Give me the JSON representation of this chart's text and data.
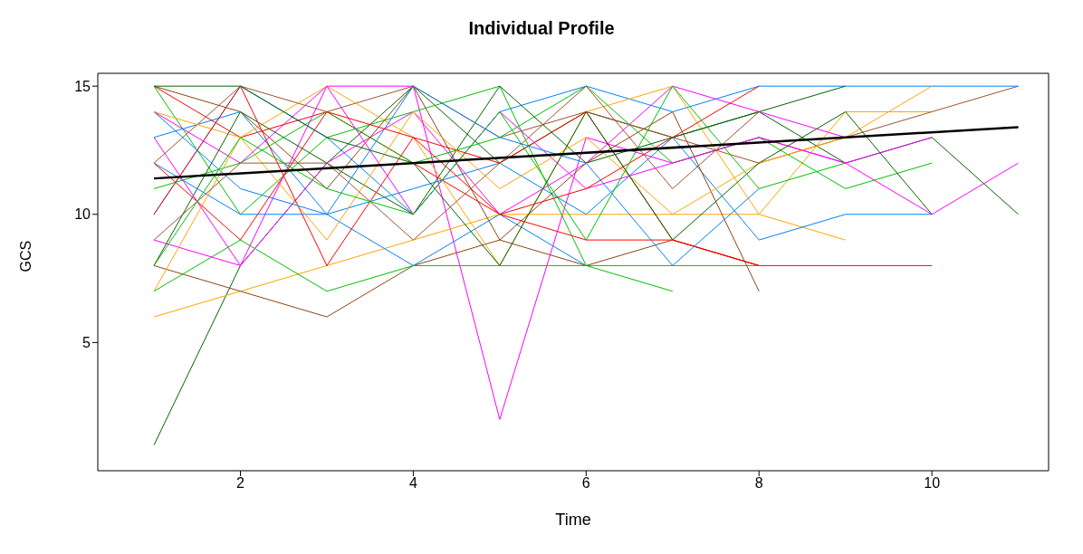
{
  "chart_data": {
    "type": "line",
    "title": "Individual Profile",
    "xlabel": "Time",
    "ylabel": "GCS",
    "x": [
      1,
      2,
      3,
      4,
      5,
      6,
      7,
      8,
      9,
      10,
      11
    ],
    "xlim": [
      0.35,
      11.35
    ],
    "xticks": [
      2,
      4,
      6,
      8,
      10
    ],
    "ylim": [
      0,
      15.5
    ],
    "yticks": [
      5,
      10,
      15
    ],
    "series": [
      {
        "color": "#006400",
        "values": [
          1,
          8,
          12,
          15,
          12,
          14,
          13,
          14,
          12,
          13,
          10
        ]
      },
      {
        "color": "#ff00ff",
        "values": [
          14,
          12,
          15,
          15,
          2,
          13,
          12,
          13,
          12,
          10,
          12
        ]
      },
      {
        "color": "#ffa500",
        "values": [
          6,
          7,
          8,
          9,
          10,
          10,
          10,
          10,
          14,
          14,
          null
        ]
      },
      {
        "color": "#8b4513",
        "values": [
          8,
          7,
          6,
          8,
          9,
          8,
          9,
          8,
          null,
          null,
          null
        ]
      },
      {
        "color": "#ff0000",
        "values": [
          15,
          13,
          14,
          12,
          10,
          9,
          9,
          8,
          8,
          8,
          null
        ]
      },
      {
        "color": "#a0522d",
        "values": [
          12,
          15,
          14,
          15,
          13,
          14,
          13,
          12,
          13,
          14,
          15
        ]
      },
      {
        "color": "#0080ff",
        "values": [
          10,
          15,
          13,
          10,
          14,
          15,
          14,
          15,
          15,
          15,
          15
        ]
      },
      {
        "color": "#00c000",
        "values": [
          7,
          9,
          7,
          8,
          8,
          8,
          8,
          8,
          null,
          null,
          null
        ]
      },
      {
        "color": "#0080ff",
        "values": [
          13,
          14,
          10,
          8,
          10,
          8,
          null,
          null,
          null,
          null,
          null
        ]
      },
      {
        "color": "#00c000",
        "values": [
          15,
          10,
          13,
          14,
          15,
          8,
          7,
          null,
          null,
          null,
          null
        ]
      },
      {
        "color": "#ff00ff",
        "values": [
          9,
          8,
          12,
          14,
          10,
          12,
          15,
          14,
          13,
          null,
          null
        ]
      },
      {
        "color": "#ffa500",
        "values": [
          14,
          13,
          15,
          13,
          8,
          14,
          15,
          10,
          9,
          null,
          null
        ]
      },
      {
        "color": "#006400",
        "values": [
          8,
          14,
          12,
          10,
          15,
          12,
          13,
          14,
          15,
          null,
          null
        ]
      },
      {
        "color": "#0080ff",
        "values": [
          12,
          10,
          10,
          11,
          12,
          10,
          13,
          9,
          10,
          10,
          null
        ]
      },
      {
        "color": "#ff0000",
        "values": [
          10,
          15,
          8,
          13,
          12,
          14,
          9,
          8,
          null,
          null,
          null
        ]
      },
      {
        "color": "#8b4513",
        "values": [
          15,
          14,
          11,
          15,
          9,
          12,
          14,
          7,
          null,
          null,
          null
        ]
      },
      {
        "color": "#00c000",
        "values": [
          11,
          12,
          14,
          12,
          13,
          15,
          12,
          13,
          11,
          12,
          null
        ]
      },
      {
        "color": "#ff00ff",
        "values": [
          13,
          8,
          15,
          10,
          14,
          11,
          12,
          13,
          12,
          13,
          null
        ]
      },
      {
        "color": "#ffa500",
        "values": [
          7,
          13,
          9,
          14,
          11,
          13,
          10,
          12,
          13,
          15,
          null
        ]
      },
      {
        "color": "#006400",
        "values": [
          15,
          15,
          13,
          12,
          8,
          14,
          9,
          12,
          14,
          10,
          null
        ]
      },
      {
        "color": "#0080ff",
        "values": [
          14,
          11,
          10,
          15,
          13,
          12,
          8,
          11,
          null,
          null,
          null
        ]
      },
      {
        "color": "#a0522d",
        "values": [
          9,
          12,
          12,
          9,
          12,
          15,
          11,
          14,
          null,
          null,
          null
        ]
      },
      {
        "color": "#ff0000",
        "values": [
          12,
          9,
          14,
          13,
          10,
          11,
          13,
          15,
          null,
          null,
          null
        ]
      },
      {
        "color": "#00c000",
        "values": [
          8,
          13,
          11,
          10,
          14,
          9,
          15,
          11,
          12,
          null,
          null
        ]
      },
      {
        "color": "#000000",
        "type": "line",
        "x": [
          1,
          11
        ],
        "values": [
          11.4,
          13.4
        ]
      }
    ]
  }
}
